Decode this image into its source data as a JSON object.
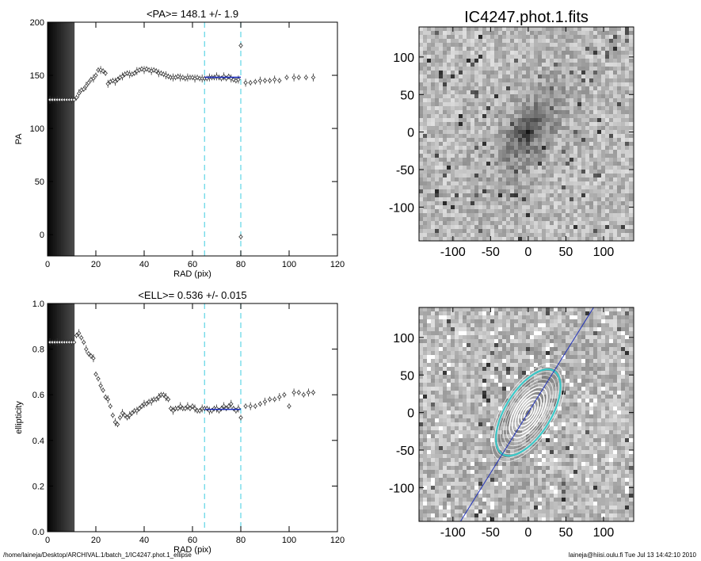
{
  "footer": {
    "path": "/home/laineja/Desktop/ARCHIVAL.1/batch_1/IC4247.phot.1_ellipse",
    "user_date": "laineja@hiisi.oulu.fi  Tue Jul 13 14:42:10 2010"
  },
  "colors": {
    "axes": "#000000",
    "markers": "#333333",
    "fit_line": "#1e2fbf",
    "guide_lines": "#5fd5e5",
    "image_overlay_line": "#2233bb",
    "contours": "#ffffff",
    "outer_contour": "#3cc8c8"
  },
  "chart_data": [
    {
      "type": "scatter",
      "panel": "pa-profile",
      "title": "<PA>= 148.1 +/-   1.9",
      "xlabel": "RAD (pix)",
      "ylabel": "PA",
      "xlim": [
        0,
        120
      ],
      "ylim": [
        -20,
        200
      ],
      "xticks": [
        "0",
        "20",
        "40",
        "60",
        "80",
        "100",
        "120"
      ],
      "yticks": [
        "0",
        "50",
        "100",
        "150",
        "200"
      ],
      "legend": "none",
      "masked_region_x": [
        0,
        11
      ],
      "vertical_guides_x": [
        65,
        80
      ],
      "fit": {
        "x_start": 65,
        "x_end": 80,
        "value": 148.1
      },
      "series": [
        {
          "points": [
            [
              1,
              127
            ],
            [
              2,
              127
            ],
            [
              3,
              127
            ],
            [
              4,
              127
            ],
            [
              5,
              127
            ],
            [
              6,
              127
            ],
            [
              7,
              127
            ],
            [
              8,
              127
            ],
            [
              9,
              127
            ],
            [
              10,
              127
            ],
            [
              11,
              127
            ],
            [
              12,
              129
            ],
            [
              13,
              133
            ],
            [
              14,
              136
            ],
            [
              15,
              137
            ],
            [
              16,
              140
            ],
            [
              17,
              143
            ],
            [
              18,
              146
            ],
            [
              19,
              147
            ],
            [
              20,
              150
            ],
            [
              21,
              155
            ],
            [
              22,
              155
            ],
            [
              23,
              154
            ],
            [
              24,
              152
            ],
            [
              25,
              142
            ],
            [
              26,
              144
            ],
            [
              27,
              145
            ],
            [
              28,
              144
            ],
            [
              29,
              146
            ],
            [
              30,
              148
            ],
            [
              31,
              149
            ],
            [
              32,
              151
            ],
            [
              33,
              152
            ],
            [
              34,
              151
            ],
            [
              35,
              151
            ],
            [
              36,
              152
            ],
            [
              37,
              154
            ],
            [
              38,
              155
            ],
            [
              39,
              156
            ],
            [
              40,
              155
            ],
            [
              41,
              156
            ],
            [
              42,
              155
            ],
            [
              43,
              154
            ],
            [
              44,
              155
            ],
            [
              45,
              154
            ],
            [
              46,
              152
            ],
            [
              47,
              152
            ],
            [
              48,
              151
            ],
            [
              49,
              150
            ],
            [
              50,
              149
            ],
            [
              51,
              148
            ],
            [
              52,
              148
            ],
            [
              53,
              148
            ],
            [
              54,
              149
            ],
            [
              55,
              148
            ],
            [
              56,
              148
            ],
            [
              57,
              147
            ],
            [
              58,
              148
            ],
            [
              59,
              148
            ],
            [
              60,
              148
            ],
            [
              61,
              147
            ],
            [
              62,
              148
            ],
            [
              63,
              147
            ],
            [
              64,
              147
            ],
            [
              65,
              147
            ],
            [
              66,
              147
            ],
            [
              67,
              148
            ],
            [
              68,
              148
            ],
            [
              69,
              148
            ],
            [
              70,
              149
            ],
            [
              71,
              148
            ],
            [
              72,
              147
            ],
            [
              73,
              149
            ],
            [
              74,
              147
            ],
            [
              75,
              149
            ],
            [
              76,
              147
            ],
            [
              77,
              146
            ],
            [
              78,
              145
            ],
            [
              79,
              146
            ],
            [
              80,
              178
            ],
            [
              80,
              -2
            ],
            [
              82,
              143
            ],
            [
              84,
              143
            ],
            [
              86,
              144
            ],
            [
              88,
              145
            ],
            [
              90,
              145
            ],
            [
              92,
              145
            ],
            [
              94,
              146
            ],
            [
              96,
              145
            ],
            [
              99,
              148
            ],
            [
              102,
              148
            ],
            [
              104,
              148
            ],
            [
              107,
              148
            ],
            [
              110,
              148
            ]
          ]
        }
      ]
    },
    {
      "type": "scatter",
      "panel": "ellipticity-profile",
      "title": "<ELL>= 0.536 +/-  0.015",
      "xlabel": "RAD (pix)",
      "ylabel": "ellipticity",
      "xlim": [
        0,
        120
      ],
      "ylim": [
        0.0,
        1.0
      ],
      "xticks": [
        "0",
        "20",
        "40",
        "60",
        "80",
        "100",
        "120"
      ],
      "yticks": [
        "0.0",
        "0.2",
        "0.4",
        "0.6",
        "0.8",
        "1.0"
      ],
      "legend": "none",
      "masked_region_x": [
        0,
        11
      ],
      "vertical_guides_x": [
        65,
        80
      ],
      "fit": {
        "x_start": 65,
        "x_end": 80,
        "value": 0.536
      },
      "series": [
        {
          "points": [
            [
              1,
              0.83
            ],
            [
              2,
              0.83
            ],
            [
              3,
              0.83
            ],
            [
              4,
              0.83
            ],
            [
              5,
              0.83
            ],
            [
              6,
              0.83
            ],
            [
              7,
              0.83
            ],
            [
              8,
              0.83
            ],
            [
              9,
              0.83
            ],
            [
              10,
              0.83
            ],
            [
              11,
              0.83
            ],
            [
              12,
              0.86
            ],
            [
              13,
              0.87
            ],
            [
              14,
              0.85
            ],
            [
              15,
              0.83
            ],
            [
              16,
              0.8
            ],
            [
              17,
              0.78
            ],
            [
              18,
              0.77
            ],
            [
              19,
              0.76
            ],
            [
              20,
              0.69
            ],
            [
              21,
              0.67
            ],
            [
              22,
              0.64
            ],
            [
              23,
              0.62
            ],
            [
              24,
              0.59
            ],
            [
              25,
              0.58
            ],
            [
              26,
              0.55
            ],
            [
              27,
              0.51
            ],
            [
              28,
              0.48
            ],
            [
              29,
              0.47
            ],
            [
              30,
              0.5
            ],
            [
              31,
              0.52
            ],
            [
              32,
              0.51
            ],
            [
              33,
              0.5
            ],
            [
              34,
              0.51
            ],
            [
              35,
              0.52
            ],
            [
              36,
              0.53
            ],
            [
              37,
              0.53
            ],
            [
              38,
              0.54
            ],
            [
              39,
              0.55
            ],
            [
              40,
              0.56
            ],
            [
              41,
              0.56
            ],
            [
              42,
              0.57
            ],
            [
              43,
              0.57
            ],
            [
              44,
              0.58
            ],
            [
              45,
              0.58
            ],
            [
              46,
              0.59
            ],
            [
              47,
              0.6
            ],
            [
              48,
              0.6
            ],
            [
              49,
              0.59
            ],
            [
              50,
              0.58
            ],
            [
              51,
              0.54
            ],
            [
              52,
              0.53
            ],
            [
              53,
              0.54
            ],
            [
              54,
              0.54
            ],
            [
              55,
              0.55
            ],
            [
              56,
              0.54
            ],
            [
              57,
              0.54
            ],
            [
              58,
              0.55
            ],
            [
              59,
              0.54
            ],
            [
              60,
              0.55
            ],
            [
              61,
              0.54
            ],
            [
              62,
              0.53
            ],
            [
              63,
              0.53
            ],
            [
              64,
              0.54
            ],
            [
              65,
              0.54
            ],
            [
              66,
              0.54
            ],
            [
              67,
              0.53
            ],
            [
              68,
              0.53
            ],
            [
              69,
              0.54
            ],
            [
              70,
              0.54
            ],
            [
              71,
              0.53
            ],
            [
              72,
              0.54
            ],
            [
              73,
              0.55
            ],
            [
              74,
              0.54
            ],
            [
              75,
              0.55
            ],
            [
              76,
              0.56
            ],
            [
              77,
              0.54
            ],
            [
              78,
              0.53
            ],
            [
              79,
              0.54
            ],
            [
              80,
              0.5
            ],
            [
              82,
              0.55
            ],
            [
              84,
              0.55
            ],
            [
              86,
              0.55
            ],
            [
              88,
              0.56
            ],
            [
              90,
              0.57
            ],
            [
              92,
              0.58
            ],
            [
              94,
              0.58
            ],
            [
              96,
              0.59
            ],
            [
              98,
              0.6
            ],
            [
              100,
              0.55
            ],
            [
              102,
              0.61
            ],
            [
              104,
              0.61
            ],
            [
              106,
              0.6
            ],
            [
              108,
              0.61
            ],
            [
              110,
              0.61
            ]
          ]
        }
      ]
    },
    {
      "type": "heatmap",
      "panel": "galaxy-image",
      "title": "IC4247.phot.1.fits",
      "xlim": [
        -145,
        140
      ],
      "ylim": [
        -145,
        140
      ],
      "xticks": [
        "-100",
        "-50",
        "0",
        "50",
        "100"
      ],
      "yticks": [
        "-100",
        "-50",
        "0",
        "50",
        "100"
      ],
      "galaxy": {
        "center": [
          0,
          0
        ],
        "position_angle_deg": 148.1,
        "ellipticity": 0.536
      }
    },
    {
      "type": "heatmap",
      "panel": "masked-image-with-isophotes",
      "title": "",
      "xlim": [
        -145,
        140
      ],
      "ylim": [
        -145,
        140
      ],
      "xticks": [
        "-100",
        "-50",
        "0",
        "50",
        "100"
      ],
      "yticks": [
        "-100",
        "-50",
        "0",
        "50",
        "100"
      ],
      "galaxy": {
        "center": [
          0,
          0
        ],
        "position_angle_deg": 148.1,
        "ellipticity": 0.536
      },
      "isophote_semi_major_axes": [
        8,
        14,
        20,
        26,
        32,
        38,
        44,
        50,
        56,
        62,
        68,
        74
      ],
      "outer_isophote_semi_major_axis": 65
    }
  ]
}
